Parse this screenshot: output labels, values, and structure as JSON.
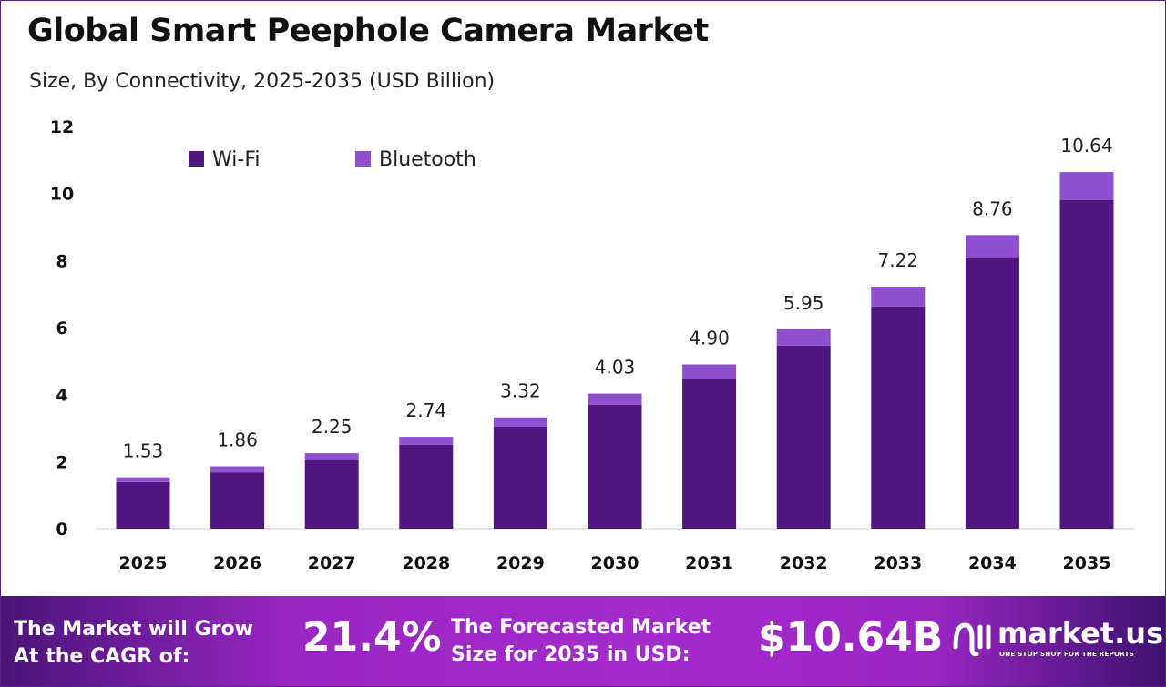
{
  "title": "Global Smart Peephole Camera Market",
  "subtitle": "Size, By Connectivity, 2025-2035 (USD Billion)",
  "chart_data": {
    "type": "bar",
    "stacked": true,
    "categories": [
      "2025",
      "2026",
      "2027",
      "2028",
      "2029",
      "2030",
      "2031",
      "2032",
      "2033",
      "2034",
      "2035"
    ],
    "series": [
      {
        "name": "Wi-Fi",
        "color": "#4f1680",
        "values": [
          1.39,
          1.68,
          2.04,
          2.5,
          3.04,
          3.7,
          4.48,
          5.46,
          6.63,
          8.07,
          9.81
        ]
      },
      {
        "name": "Bluetooth",
        "color": "#8e4fd0",
        "values": [
          0.14,
          0.18,
          0.21,
          0.24,
          0.28,
          0.33,
          0.42,
          0.49,
          0.59,
          0.69,
          0.83
        ]
      }
    ],
    "totals": [
      "1.53",
      "1.86",
      "2.25",
      "2.74",
      "3.32",
      "4.03",
      "4.90",
      "5.95",
      "7.22",
      "8.76",
      "10.64"
    ],
    "ylim": [
      0,
      12
    ],
    "yticks": [
      "0",
      "2",
      "4",
      "6",
      "8",
      "10",
      "12"
    ],
    "grid": false,
    "legend": "top-left"
  },
  "footer": {
    "cagr_label_1": "The Market will Grow",
    "cagr_label_2": "At the CAGR of:",
    "cagr_value": "21.4%",
    "forecast_label_1": "The Forecasted Market",
    "forecast_label_2": "Size for 2035 in USD:",
    "forecast_value": "$10.64B",
    "logo_name": "market.us",
    "logo_tagline": "ONE STOP SHOP FOR THE REPORTS"
  }
}
